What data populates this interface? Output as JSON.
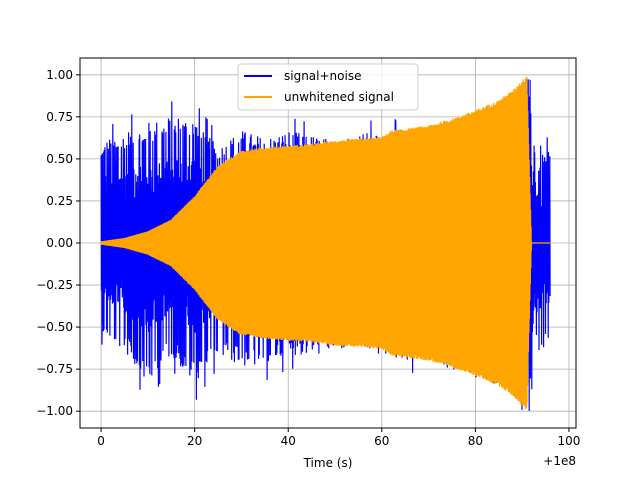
{
  "chart_data": {
    "type": "line",
    "title": "",
    "xlabel": "Time (s)",
    "ylabel": "",
    "x_offset_label": "+1e8",
    "xlim": [
      -4.5,
      101.5
    ],
    "ylim": [
      -1.1,
      1.1
    ],
    "x_ticks": [
      0,
      20,
      40,
      60,
      80,
      100
    ],
    "x_tick_labels": [
      "0",
      "20",
      "40",
      "60",
      "80",
      "100"
    ],
    "y_ticks": [
      -1.0,
      -0.75,
      -0.5,
      -0.25,
      0.0,
      0.25,
      0.5,
      0.75,
      1.0
    ],
    "y_tick_labels": [
      "−1.00",
      "−0.75",
      "−0.50",
      "−0.25",
      "0.00",
      "0.25",
      "0.50",
      "0.75",
      "1.00"
    ],
    "grid": true,
    "legend_position": "top-center",
    "series": [
      {
        "name": "signal+noise",
        "color": "#0000ff",
        "envelope_x": [
          0,
          5,
          10,
          15,
          20,
          25,
          30,
          35,
          40,
          45,
          50,
          55,
          60,
          65,
          70,
          75,
          80,
          85,
          90,
          92,
          93,
          96
        ],
        "envelope_max": [
          0.68,
          0.75,
          0.8,
          0.85,
          0.85,
          0.65,
          0.75,
          0.7,
          0.75,
          0.72,
          0.68,
          0.75,
          0.72,
          0.75,
          0.75,
          0.82,
          0.85,
          0.88,
          0.98,
          0.98,
          0.55,
          0.65
        ],
        "envelope_min": [
          -0.6,
          -0.72,
          -0.95,
          -0.75,
          -0.95,
          -0.75,
          -0.82,
          -0.83,
          -0.75,
          -0.75,
          -0.72,
          -0.7,
          -0.75,
          -0.78,
          -0.78,
          -0.85,
          -0.9,
          -0.95,
          -1.0,
          -1.0,
          -0.72,
          -0.72
        ]
      },
      {
        "name": "unwhitened signal",
        "color": "#ffa500",
        "envelope_x": [
          0,
          5,
          10,
          15,
          20,
          25,
          30,
          35,
          40,
          45,
          50,
          55,
          60,
          62,
          65,
          70,
          75,
          80,
          85,
          88,
          90,
          91,
          92,
          96
        ],
        "envelope_amp": [
          0.01,
          0.03,
          0.07,
          0.14,
          0.28,
          0.46,
          0.55,
          0.57,
          0.58,
          0.59,
          0.61,
          0.62,
          0.63,
          0.67,
          0.68,
          0.7,
          0.74,
          0.79,
          0.85,
          0.91,
          0.97,
          1.0,
          0.0,
          0.0
        ]
      }
    ]
  }
}
